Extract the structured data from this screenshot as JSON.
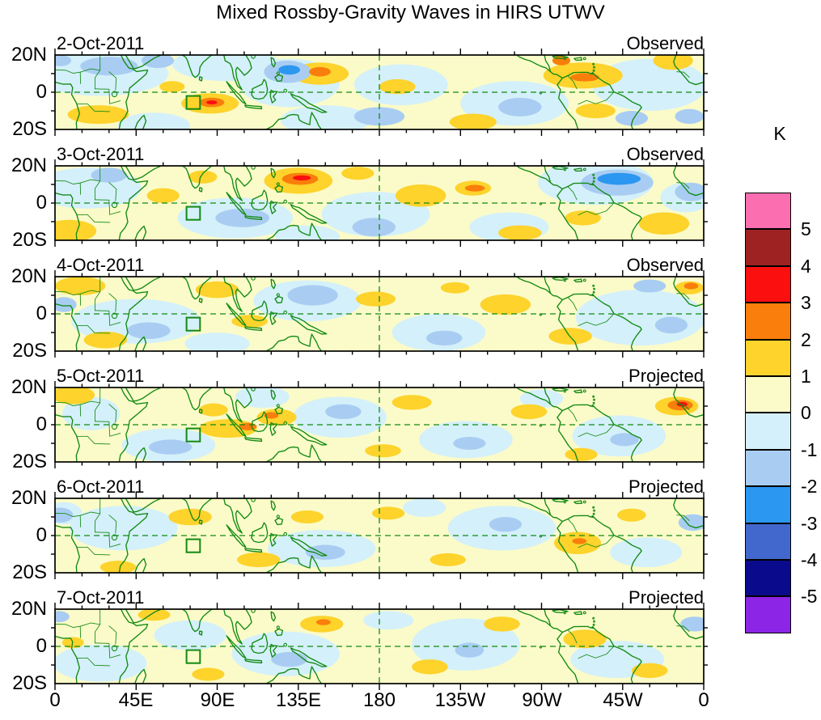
{
  "title": "Mixed Rossby-Gravity Waves in HIRS UTWV",
  "colorbar": {
    "unit_label": "K",
    "position": "right",
    "tick_labels": [
      "5",
      "4",
      "3",
      "2",
      "1",
      "0",
      "-1",
      "-2",
      "-3",
      "-4",
      "-5"
    ],
    "segment_colors_top_to_bottom": [
      "#FB6EB0",
      "#9E2222",
      "#FB0F0F",
      "#F97E0B",
      "#FDD32C",
      "#FBFBC9",
      "#D4F0FA",
      "#A9CDF2",
      "#2B97F0",
      "#4268CE",
      "#0A0A8C",
      "#8C25E5"
    ]
  },
  "x_axis": {
    "tick_labels": [
      "0",
      "45E",
      "90E",
      "135E",
      "180",
      "135W",
      "90W",
      "45W",
      "0"
    ],
    "tick_lons_deg": [
      0,
      45,
      90,
      135,
      180,
      225,
      270,
      315,
      360
    ],
    "minor_tick_interval_deg": 15
  },
  "y_axis": {
    "tick_labels": [
      "20N",
      "0",
      "20S"
    ],
    "tick_lats_deg": [
      20,
      0,
      -20
    ]
  },
  "map_style": {
    "land_outline_color": "#128A12",
    "zero_fill": "#FBFBC9",
    "anomaly_palette": {
      "1": "#FDD32C",
      "2": "#F97E0B",
      "3": "#FB0F0F",
      "-1": "#D4F0FA",
      "-2": "#A9CDF2",
      "-3": "#2B97F0"
    }
  },
  "chart_data": {
    "type": "heatmap",
    "title": "Mixed Rossby-Gravity Waves in HIRS UTWV",
    "units": "K",
    "contour_levels": [
      -5,
      -4,
      -3,
      -2,
      -1,
      0,
      1,
      2,
      3,
      4,
      5
    ],
    "lon_range_deg": [
      0,
      360
    ],
    "lat_range_deg": [
      -20,
      20
    ],
    "grid": {
      "equator_dashed": true,
      "dateline_dashed_lon": 180
    },
    "legend_position": "right",
    "target_box": {
      "lon_deg": [
        73,
        80.5
      ],
      "lat_deg": [
        -9,
        -2
      ]
    },
    "panels": [
      {
        "date": "2-Oct-2011",
        "source": "Observed",
        "anomalies": [
          [
            25,
            10,
            38,
            12,
            -1
          ],
          [
            95,
            15,
            30,
            9,
            -1
          ],
          [
            130,
            5,
            28,
            13,
            -1
          ],
          [
            192,
            4,
            26,
            11,
            -1
          ],
          [
            255,
            -6,
            30,
            12,
            -1
          ],
          [
            330,
            4,
            32,
            14,
            -1
          ],
          [
            55,
            -18,
            20,
            7,
            -1
          ],
          [
            150,
            -15,
            25,
            8,
            -1
          ],
          [
            30,
            14,
            16,
            5,
            -2
          ],
          [
            57,
            17,
            9,
            4,
            -2
          ],
          [
            129,
            11,
            13,
            6,
            -2
          ],
          [
            180,
            -13,
            14,
            5,
            -2
          ],
          [
            258,
            -8,
            12,
            5,
            -2
          ],
          [
            320,
            -14,
            9,
            4,
            -2
          ],
          [
            352,
            -13,
            8,
            4,
            -2
          ],
          [
            3,
            17,
            6,
            3,
            -2
          ],
          [
            130,
            12,
            6,
            2.5,
            -3
          ],
          [
            24,
            -12,
            17,
            5,
            1
          ],
          [
            86,
            -6,
            16,
            5.5,
            1
          ],
          [
            147,
            10,
            16,
            6,
            1
          ],
          [
            190,
            3,
            10,
            4,
            1
          ],
          [
            232,
            -16,
            13,
            4.5,
            1
          ],
          [
            293,
            9,
            22,
            7,
            1
          ],
          [
            300,
            -10,
            11,
            4,
            1
          ],
          [
            343,
            17,
            11,
            5,
            1
          ],
          [
            65,
            3,
            7,
            3,
            1
          ],
          [
            87,
            -5.5,
            7,
            2.5,
            2
          ],
          [
            147,
            11,
            6,
            2.5,
            2
          ],
          [
            294,
            8,
            8,
            2.2,
            2
          ],
          [
            281,
            17,
            5,
            2.5,
            2
          ],
          [
            87,
            -5.5,
            3,
            1.1,
            3
          ]
        ]
      },
      {
        "date": "3-Oct-2011",
        "source": "Observed",
        "anomalies": [
          [
            18,
            8,
            30,
            11,
            -1
          ],
          [
            100,
            -8,
            32,
            11,
            -1
          ],
          [
            178,
            -6,
            30,
            12,
            -1
          ],
          [
            300,
            11,
            32,
            12,
            -1
          ],
          [
            252,
            -13,
            22,
            8,
            -1
          ],
          [
            140,
            -18,
            18,
            6,
            -1
          ],
          [
            350,
            3,
            14,
            8,
            -1
          ],
          [
            104,
            -8,
            15,
            5,
            -2
          ],
          [
            177,
            -13,
            12,
            5,
            -2
          ],
          [
            312,
            11,
            20,
            7,
            -2
          ],
          [
            353,
            6,
            9,
            5,
            -2
          ],
          [
            30,
            15,
            10,
            4,
            -2
          ],
          [
            313,
            13,
            12,
            3.2,
            -3
          ],
          [
            8,
            -15,
            15,
            6,
            1
          ],
          [
            60,
            4,
            9,
            4,
            1
          ],
          [
            135,
            12,
            19,
            7,
            1
          ],
          [
            203,
            4,
            14,
            6,
            1
          ],
          [
            168,
            16,
            9,
            3.5,
            1
          ],
          [
            232,
            8,
            10,
            4,
            1
          ],
          [
            258,
            -16,
            12,
            4,
            1
          ],
          [
            293,
            -8,
            10,
            4,
            1
          ],
          [
            338,
            -11,
            14,
            6,
            1
          ],
          [
            82,
            14,
            8,
            3.5,
            1
          ],
          [
            136,
            13,
            10,
            3.2,
            2
          ],
          [
            233,
            8,
            5.5,
            1.8,
            2
          ],
          [
            137,
            13.5,
            5,
            1.4,
            3
          ]
        ]
      },
      {
        "date": "4-Oct-2011",
        "source": "Observed",
        "anomalies": [
          [
            45,
            -4,
            36,
            12,
            -1
          ],
          [
            140,
            7,
            30,
            11,
            -1
          ],
          [
            213,
            -10,
            26,
            10,
            -1
          ],
          [
            325,
            -2,
            36,
            15,
            -1
          ],
          [
            90,
            -16,
            18,
            6,
            -1
          ],
          [
            143,
            10,
            14,
            5.5,
            -2
          ],
          [
            52,
            -9,
            12,
            4.5,
            -2
          ],
          [
            216,
            -13,
            10,
            4,
            -2
          ],
          [
            330,
            15,
            9,
            3.5,
            -2
          ],
          [
            342,
            -6,
            9,
            4.5,
            -2
          ],
          [
            5,
            5,
            7,
            4,
            -2
          ],
          [
            14,
            15,
            14,
            5,
            1
          ],
          [
            28,
            -14,
            12,
            4.5,
            1
          ],
          [
            90,
            13,
            12,
            4.5,
            1
          ],
          [
            108,
            -4,
            10,
            3.5,
            1
          ],
          [
            178,
            8,
            11,
            4,
            1
          ],
          [
            250,
            5,
            14,
            5.5,
            1
          ],
          [
            286,
            -12,
            12,
            4.5,
            1
          ],
          [
            352,
            14,
            8,
            3.5,
            1
          ],
          [
            222,
            14,
            8,
            3,
            1
          ],
          [
            353,
            15,
            4,
            1.8,
            2
          ]
        ]
      },
      {
        "date": "5-Oct-2011",
        "source": "Projected",
        "anomalies": [
          [
            20,
            6,
            16,
            9,
            -1
          ],
          [
            63,
            -11,
            26,
            9,
            -1
          ],
          [
            158,
            4,
            26,
            11,
            -1
          ],
          [
            228,
            -8,
            26,
            10,
            -1
          ],
          [
            313,
            -6,
            26,
            11,
            -1
          ],
          [
            115,
            15,
            15,
            6,
            -1
          ],
          [
            270,
            14,
            12,
            5,
            -1
          ],
          [
            64,
            -12,
            12,
            4,
            -2
          ],
          [
            160,
            7,
            10,
            4,
            -2
          ],
          [
            230,
            -10,
            9,
            3.5,
            -2
          ],
          [
            316,
            -8,
            8,
            3.5,
            -2
          ],
          [
            10,
            16,
            12,
            5,
            1
          ],
          [
            96,
            -2,
            16,
            5,
            1
          ],
          [
            123,
            4,
            11,
            4.5,
            1
          ],
          [
            88,
            8,
            8,
            3.5,
            1
          ],
          [
            198,
            12,
            11,
            4,
            1
          ],
          [
            263,
            7,
            10,
            4,
            1
          ],
          [
            345,
            10,
            12,
            5,
            1
          ],
          [
            182,
            -14,
            10,
            3.5,
            1
          ],
          [
            292,
            -16,
            9,
            3.5,
            1
          ],
          [
            347,
            10.5,
            7,
            2.8,
            2
          ],
          [
            107,
            -1,
            5,
            2,
            2
          ],
          [
            120,
            5,
            4,
            1.8,
            2
          ],
          [
            348,
            11,
            3,
            1.3,
            3
          ]
        ]
      },
      {
        "date": "6-Oct-2011",
        "source": "Projected",
        "anomalies": [
          [
            38,
            4,
            30,
            12,
            -1
          ],
          [
            148,
            -7,
            30,
            10,
            -1
          ],
          [
            248,
            4,
            30,
            12,
            -1
          ],
          [
            328,
            -9,
            20,
            8,
            -1
          ],
          [
            5,
            12,
            10,
            6,
            -1
          ],
          [
            205,
            15,
            12,
            5,
            -1
          ],
          [
            3,
            11,
            7,
            4,
            -2
          ],
          [
            150,
            -9,
            11,
            4,
            -2
          ],
          [
            354,
            7,
            8,
            4.5,
            -2
          ],
          [
            250,
            6,
            9,
            4,
            -2
          ],
          [
            75,
            10,
            12,
            4.5,
            1
          ],
          [
            113,
            -13,
            12,
            4,
            1
          ],
          [
            140,
            10,
            9,
            3.5,
            1
          ],
          [
            185,
            12,
            9,
            3.5,
            1
          ],
          [
            218,
            -13,
            10,
            3.5,
            1
          ],
          [
            290,
            -4,
            13,
            6,
            1
          ],
          [
            320,
            11,
            8,
            3.5,
            1
          ],
          [
            35,
            -17,
            10,
            3.5,
            1
          ],
          [
            291,
            -3,
            4,
            1.6,
            2
          ]
        ]
      },
      {
        "date": "7-Oct-2011",
        "source": "Projected",
        "anomalies": [
          [
            25,
            -9,
            26,
            10,
            -1
          ],
          [
            128,
            -4,
            30,
            12,
            -1
          ],
          [
            228,
            1,
            30,
            14,
            -1
          ],
          [
            312,
            -7,
            26,
            10,
            -1
          ],
          [
            185,
            14,
            14,
            5,
            -1
          ],
          [
            75,
            6,
            20,
            8,
            -1
          ],
          [
            2,
            16,
            6,
            3,
            -2
          ],
          [
            130,
            -7,
            10,
            4,
            -2
          ],
          [
            355,
            12,
            8,
            4,
            -2
          ],
          [
            230,
            -2,
            8,
            4,
            -2
          ],
          [
            55,
            17,
            9,
            3.2,
            1
          ],
          [
            148,
            12,
            12,
            4.5,
            1
          ],
          [
            208,
            -11,
            10,
            4,
            1
          ],
          [
            248,
            12,
            10,
            4,
            1
          ],
          [
            294,
            4,
            12,
            5,
            1
          ],
          [
            330,
            -13,
            10,
            4,
            1
          ],
          [
            85,
            -15,
            9,
            3.5,
            1
          ],
          [
            10,
            2,
            6,
            3,
            1
          ],
          [
            149,
            13,
            4,
            1.6,
            2
          ]
        ]
      }
    ]
  }
}
